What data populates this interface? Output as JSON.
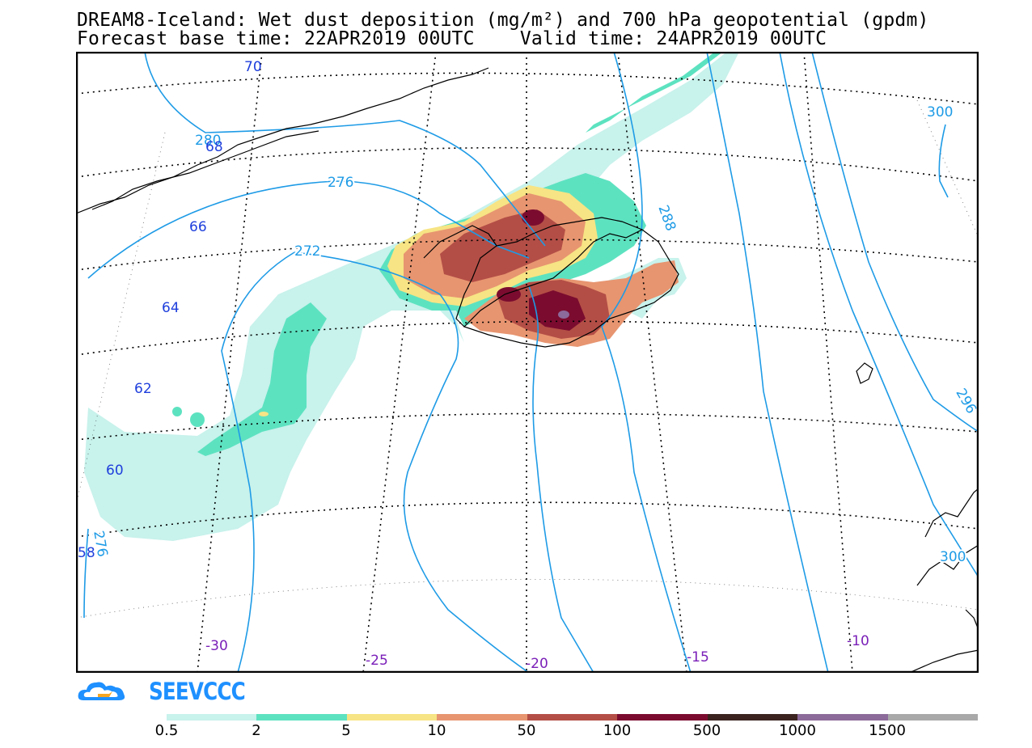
{
  "title": {
    "line1": "DREAM8-Iceland: Wet dust deposition (mg/m²) and 700 hPa geopotential (gpdm)",
    "line2": "Forecast base time: 22APR2019 00UTC    Valid time: 24APR2019 00UTC"
  },
  "logo": {
    "text": "SEEVCCC",
    "color": "#1e90ff"
  },
  "map": {
    "latitude_labels": [
      "70",
      "68",
      "66",
      "64",
      "62",
      "60",
      "58"
    ],
    "longitude_labels": [
      "-30",
      "-25",
      "-20",
      "-15",
      "-10"
    ],
    "contour_labels": [
      "280",
      "276",
      "272",
      "288",
      "296",
      "300",
      "276",
      "300"
    ],
    "contour_color": "#1e9be6",
    "lat_label_color": "#1f3fdc",
    "lon_label_color": "#7a1fb8"
  },
  "colorbar": {
    "colors": [
      "#c8f2ec",
      "#5de2c0",
      "#f7e484",
      "#e79570",
      "#b34e46",
      "#7b0c2f",
      "#3b2420",
      "#8c6a9a",
      "#a9a9a9"
    ],
    "labels": [
      "0.5",
      "2",
      "5",
      "10",
      "50",
      "100",
      "500",
      "1000",
      "1500"
    ]
  }
}
